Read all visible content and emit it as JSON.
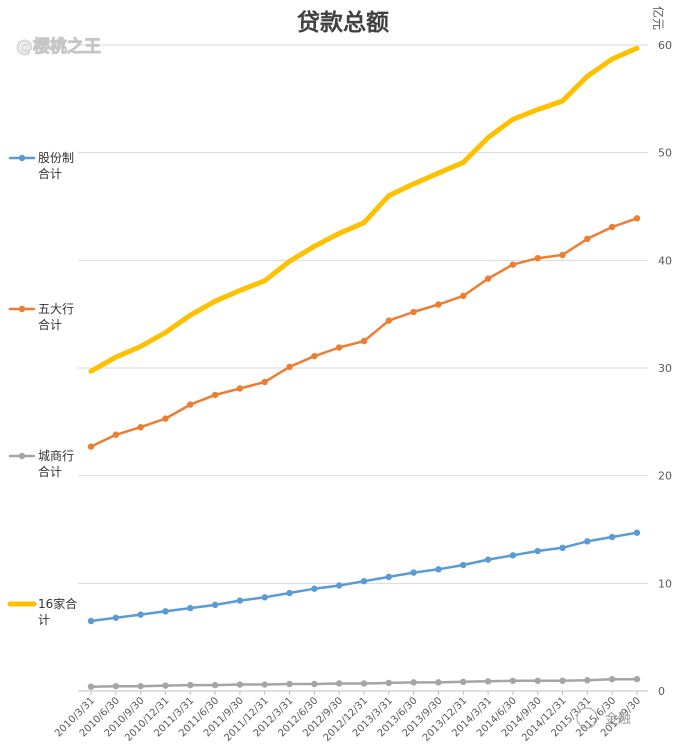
{
  "chart_data": {
    "type": "line",
    "title": "贷款总额",
    "unit": "亿元",
    "ylim": [
      0,
      60
    ],
    "yticks": [
      "0",
      "10",
      "20",
      "30",
      "40",
      "50",
      "60"
    ],
    "y_axis_position": "right",
    "grid": true,
    "legend_position": "left",
    "categories": [
      "2010/3/31",
      "2010/6/30",
      "2010/9/30",
      "2010/12/31",
      "2011/3/31",
      "2011/6/30",
      "2011/9/30",
      "2011/12/31",
      "2012/3/31",
      "2012/6/30",
      "2012/9/30",
      "2012/12/31",
      "2013/3/31",
      "2013/6/30",
      "2013/9/30",
      "2013/12/31",
      "2014/3/31",
      "2014/6/30",
      "2014/9/30",
      "2014/12/31",
      "2015/3/31",
      "2015/6/30",
      "2015/9/30"
    ],
    "series": [
      {
        "name": "股份制合计",
        "legend_lines": [
          "股份制",
          "合计"
        ],
        "color": "#5b9bd5",
        "marker": true,
        "values": [
          6.5,
          6.8,
          7.1,
          7.4,
          7.7,
          8.0,
          8.4,
          8.7,
          9.1,
          9.5,
          9.8,
          10.2,
          10.6,
          11.0,
          11.3,
          11.7,
          12.2,
          12.6,
          13.0,
          13.3,
          13.9,
          14.3,
          14.7
        ]
      },
      {
        "name": "五大行合计",
        "legend_lines": [
          "五大行",
          "合计"
        ],
        "color": "#ed7d31",
        "marker": true,
        "values": [
          22.7,
          23.8,
          24.5,
          25.3,
          26.6,
          27.5,
          28.1,
          28.7,
          30.1,
          31.1,
          31.9,
          32.5,
          34.4,
          35.2,
          35.9,
          36.7,
          38.3,
          39.6,
          40.2,
          40.5,
          42.0,
          43.1,
          43.9
        ]
      },
      {
        "name": "城商行合计",
        "legend_lines": [
          "城商行",
          "合计"
        ],
        "color": "#a5a5a5",
        "marker": true,
        "values": [
          0.4,
          0.45,
          0.45,
          0.5,
          0.55,
          0.55,
          0.6,
          0.6,
          0.65,
          0.65,
          0.7,
          0.7,
          0.75,
          0.8,
          0.8,
          0.85,
          0.9,
          0.95,
          0.95,
          0.95,
          1.0,
          1.1,
          1.1
        ]
      },
      {
        "name": "16家合计",
        "legend_lines": [
          "16家合",
          "计"
        ],
        "color": "#ffc000",
        "marker": false,
        "values": [
          29.7,
          31.0,
          32.0,
          33.3,
          34.9,
          36.2,
          37.2,
          38.1,
          39.9,
          41.3,
          42.5,
          43.5,
          46.0,
          47.1,
          48.1,
          49.1,
          51.4,
          53.1,
          54.0,
          54.8,
          57.1,
          58.7,
          59.7
        ]
      }
    ]
  },
  "watermark": {
    "top_left": "@樱桃之王",
    "bottom_right": "金融"
  }
}
